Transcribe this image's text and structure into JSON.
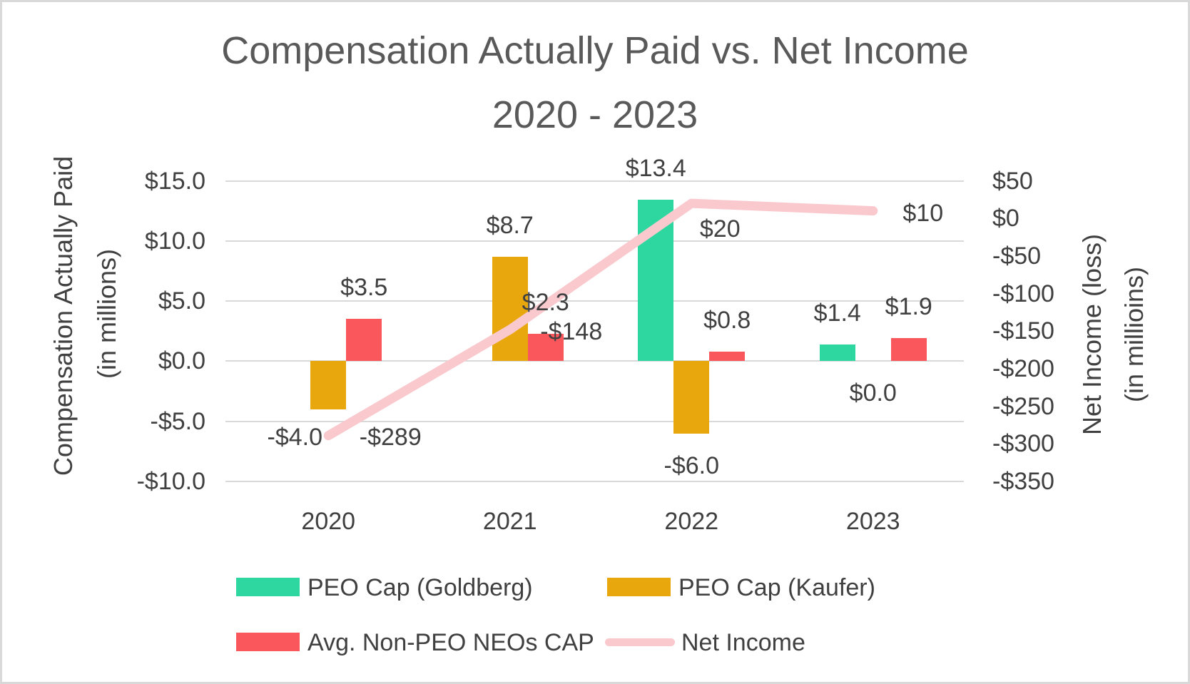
{
  "title": {
    "line1": "Compensation Actually Paid vs. Net Income",
    "line2": "2020 - 2023"
  },
  "left_axis": {
    "title_line1": "Compensation Actually Paid",
    "title_line2": "(in millions)",
    "ticks": [
      "$15.0",
      "$10.0",
      "$5.0",
      "$0.0",
      "-$5.0",
      "-$10.0"
    ]
  },
  "right_axis": {
    "title_line1": "Net Income (loss)",
    "title_line2": "(in millioins)",
    "ticks": [
      "$50",
      "$0",
      "-$50",
      "-$100",
      "-$150",
      "-$200",
      "-$250",
      "-$300",
      "-$350"
    ]
  },
  "x_axis": {
    "categories": [
      "2020",
      "2021",
      "2022",
      "2023"
    ]
  },
  "legend": {
    "items": [
      {
        "label": "PEO Cap (Goldberg)",
        "swatch": "bar",
        "color_key": "goldberg"
      },
      {
        "label": "PEO Cap (Kaufer)",
        "swatch": "bar",
        "color_key": "kaufer"
      },
      {
        "label": "Avg. Non-PEO NEOs CAP",
        "swatch": "bar",
        "color_key": "non_peo"
      },
      {
        "label": "Net Income",
        "swatch": "line",
        "color_key": "net_income"
      }
    ]
  },
  "colors": {
    "goldberg": "#2fd7a0",
    "kaufer": "#e8a80d",
    "non_peo": "#f9575c",
    "net_income": "#f9c9ce",
    "gridline": "#d9d9d9",
    "title_text": "#595959",
    "text": "#404040"
  },
  "chart_data": {
    "type": "combo",
    "title": "Compensation Actually Paid vs. Net Income 2020 - 2023",
    "categories": [
      "2020",
      "2021",
      "2022",
      "2023"
    ],
    "grid": true,
    "legend_position": "bottom",
    "left_axis_label": "Compensation Actually Paid (in millions)",
    "right_axis_label": "Net Income (loss) (in millioins)",
    "left_ylim": [
      -10,
      15
    ],
    "right_ylim": [
      -350,
      50
    ],
    "series": [
      {
        "name": "PEO Cap (Goldberg)",
        "type": "bar",
        "axis": "left",
        "color_key": "goldberg",
        "values": [
          null,
          null,
          13.4,
          1.4
        ],
        "data_labels": [
          null,
          null,
          "$13.4",
          "$1.4"
        ]
      },
      {
        "name": "PEO Cap (Kaufer)",
        "type": "bar",
        "axis": "left",
        "color_key": "kaufer",
        "values": [
          -4.0,
          8.7,
          -6.0,
          0.0
        ],
        "data_labels": [
          "-$4.0",
          "$8.7",
          "-$6.0",
          "$0.0"
        ]
      },
      {
        "name": "Avg. Non-PEO NEOs CAP",
        "type": "bar",
        "axis": "left",
        "color_key": "non_peo",
        "values": [
          3.5,
          2.3,
          0.8,
          1.9
        ],
        "data_labels": [
          "$3.5",
          "$2.3",
          "$0.8",
          "$1.9"
        ]
      },
      {
        "name": "Net Income",
        "type": "line",
        "axis": "right",
        "color_key": "net_income",
        "values": [
          -289,
          -148,
          20,
          10
        ],
        "data_labels": [
          "-$289",
          "-$148",
          "$20",
          "$10"
        ]
      }
    ]
  }
}
